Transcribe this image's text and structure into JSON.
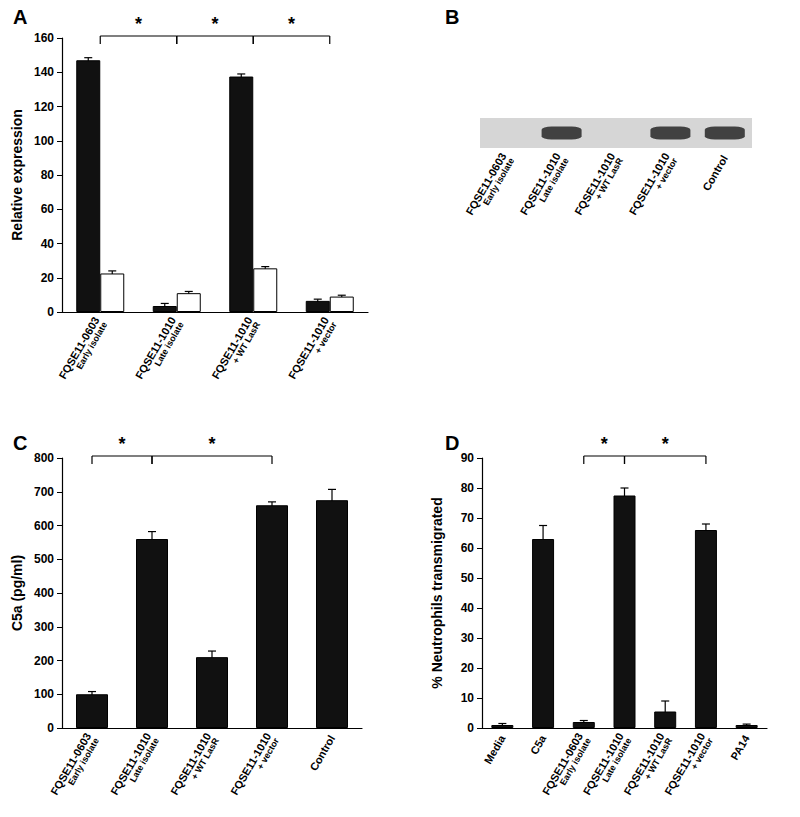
{
  "chart_data": [
    {
      "type": "bar",
      "title": "A",
      "categories": [
        "FQSE11-0603\nEarly isolate",
        "FQSE11-1010\nLate isolate",
        "FQSE11-1010\n+ WT LasR",
        "FQSE11-1010\n+ vector"
      ],
      "series": [
        {
          "color": "#111111",
          "values": [
            147,
            3.5,
            137.5,
            6.5
          ],
          "errors": [
            1.5,
            1.5,
            1.5,
            1
          ]
        },
        {
          "color": "#ffffff",
          "values": [
            22.5,
            11,
            25.5,
            9
          ],
          "errors": [
            1.5,
            1,
            1,
            0.8
          ]
        }
      ],
      "ylabel": "Relative expression",
      "ylim": [
        0,
        160
      ],
      "yticks": [
        0,
        20,
        40,
        60,
        80,
        100,
        120,
        140,
        160
      ],
      "grid": false,
      "annotations": [
        {
          "from": 0,
          "to": 1,
          "text": "*"
        },
        {
          "from": 1,
          "to": 2,
          "text": "*"
        },
        {
          "from": 2,
          "to": 3,
          "text": "*"
        }
      ]
    },
    {
      "type": "blot",
      "title": "B",
      "categories": [
        "FQSE11-0603\nEarly isolate",
        "FQSE11-1010\nLate isolate",
        "FQSE11-1010\n+ WT LasR",
        "FQSE11-1010\n+ vector",
        "Control"
      ],
      "values": [
        0,
        1,
        0,
        1,
        1
      ]
    },
    {
      "type": "bar",
      "title": "C",
      "categories": [
        "FQSE11-0603\nEarly isolate",
        "FQSE11-1010\nLate isolate",
        "FQSE11-1010\n+ WT LasR",
        "FQSE11-1010\n+ vector",
        "Control"
      ],
      "color": "#111111",
      "values": [
        100,
        560,
        210,
        660,
        675
      ],
      "errors": [
        8,
        22,
        18,
        10,
        32
      ],
      "ylabel": "C5a (pg/ml)",
      "ylim": [
        0,
        800
      ],
      "yticks": [
        0,
        100,
        200,
        300,
        400,
        500,
        600,
        700,
        800
      ],
      "grid": false,
      "annotations": [
        {
          "from": 0,
          "to": 1,
          "text": "*"
        },
        {
          "from": 1,
          "to": 3,
          "text": "*"
        }
      ]
    },
    {
      "type": "bar",
      "title": "D",
      "categories": [
        "Media",
        "C5a",
        "FQSE11-0603\nEarly isolate",
        "FQSE11-1010\nLate isolate",
        "FQSE11-1010\n+ WT LasR",
        "FQSE11-1010\n+ vector",
        "PA14"
      ],
      "color": "#111111",
      "values": [
        1,
        63,
        2,
        77.5,
        5.5,
        66,
        1
      ],
      "errors": [
        0.5,
        4.5,
        0.5,
        2.5,
        3.5,
        2,
        0.3
      ],
      "ylabel": "% Neutrophils transmigrated",
      "ylim": [
        0,
        90
      ],
      "yticks": [
        0,
        10,
        20,
        30,
        40,
        50,
        60,
        70,
        80,
        90
      ],
      "grid": false,
      "annotations": [
        {
          "from": 2,
          "to": 3,
          "text": "*"
        },
        {
          "from": 3,
          "to": 5,
          "text": "*"
        }
      ]
    }
  ]
}
